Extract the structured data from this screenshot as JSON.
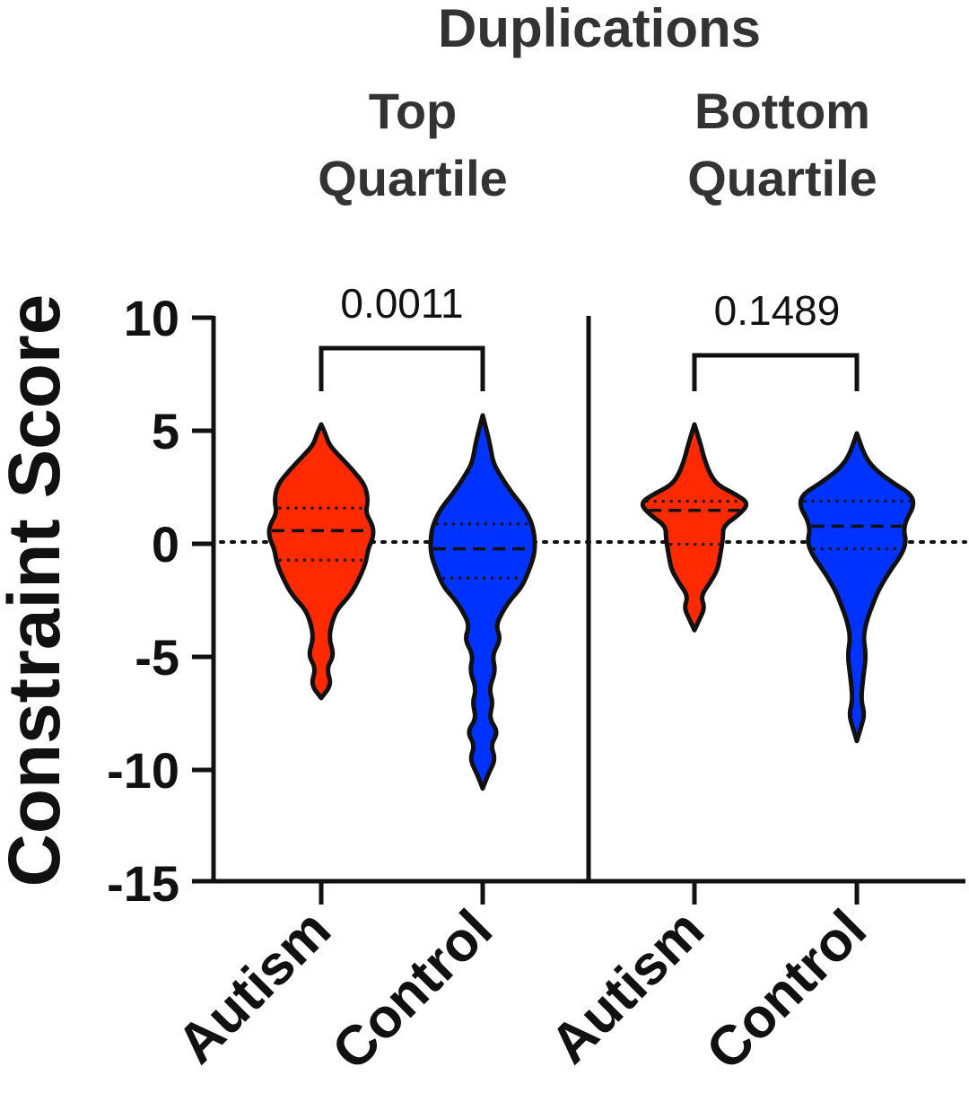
{
  "chart_data": {
    "type": "violin",
    "title": "Duplications",
    "panels": [
      {
        "title_line1": "Top",
        "title_line2": "Quartile",
        "p_value": "0.0011",
        "groups": [
          {
            "name": "Autism",
            "color": "#ff2a00",
            "median": 0.5,
            "q1": -0.8,
            "q3": 1.5,
            "profile": [
              [
                -6.9,
                0.0
              ],
              [
                -6.3,
                0.2
              ],
              [
                -5.6,
                0.1
              ],
              [
                -5.0,
                0.25
              ],
              [
                -4.3,
                0.15
              ],
              [
                -3.6,
                0.2
              ],
              [
                -3.0,
                0.3
              ],
              [
                -2.5,
                0.5
              ],
              [
                -2.0,
                0.65
              ],
              [
                -1.0,
                0.85
              ],
              [
                -0.3,
                0.9
              ],
              [
                0.2,
                1.0
              ],
              [
                0.7,
                1.0
              ],
              [
                1.3,
                0.85
              ],
              [
                1.8,
                0.9
              ],
              [
                2.5,
                0.85
              ],
              [
                3.2,
                0.6
              ],
              [
                3.8,
                0.35
              ],
              [
                4.3,
                0.15
              ],
              [
                4.8,
                0.08
              ],
              [
                5.2,
                0.0
              ]
            ]
          },
          {
            "name": "Control",
            "color": "#0033ff",
            "median": -0.3,
            "q1": -1.6,
            "q3": 0.8,
            "profile": [
              [
                -10.9,
                0.0
              ],
              [
                -10.3,
                0.1
              ],
              [
                -9.6,
                0.25
              ],
              [
                -9.0,
                0.15
              ],
              [
                -8.4,
                0.3
              ],
              [
                -7.8,
                0.12
              ],
              [
                -7.1,
                0.2
              ],
              [
                -6.5,
                0.12
              ],
              [
                -5.7,
                0.25
              ],
              [
                -5.0,
                0.18
              ],
              [
                -4.3,
                0.35
              ],
              [
                -3.7,
                0.25
              ],
              [
                -3.0,
                0.4
              ],
              [
                -2.5,
                0.55
              ],
              [
                -2.0,
                0.75
              ],
              [
                -1.2,
                0.9
              ],
              [
                -0.5,
                1.0
              ],
              [
                0.2,
                1.0
              ],
              [
                0.8,
                0.95
              ],
              [
                1.5,
                0.8
              ],
              [
                2.2,
                0.55
              ],
              [
                2.9,
                0.35
              ],
              [
                3.5,
                0.2
              ],
              [
                4.2,
                0.15
              ],
              [
                4.9,
                0.08
              ],
              [
                5.6,
                0.0
              ]
            ]
          }
        ]
      },
      {
        "title_line1": "Bottom",
        "title_line2": "Quartile",
        "p_value": "0.1489",
        "groups": [
          {
            "name": "Autism",
            "color": "#ff2a00",
            "median": 1.4,
            "q1": -0.1,
            "q3": 1.8,
            "profile": [
              [
                -3.9,
                0.0
              ],
              [
                -3.4,
                0.1
              ],
              [
                -2.9,
                0.2
              ],
              [
                -2.4,
                0.12
              ],
              [
                -1.8,
                0.3
              ],
              [
                -1.2,
                0.45
              ],
              [
                -0.5,
                0.5
              ],
              [
                0.2,
                0.55
              ],
              [
                0.7,
                0.55
              ],
              [
                1.2,
                0.85
              ],
              [
                1.7,
                1.05
              ],
              [
                2.1,
                0.8
              ],
              [
                2.5,
                0.45
              ],
              [
                3.0,
                0.3
              ],
              [
                3.6,
                0.2
              ],
              [
                4.3,
                0.12
              ],
              [
                5.2,
                0.0
              ]
            ]
          },
          {
            "name": "Control",
            "color": "#0033ff",
            "median": 0.7,
            "q1": -0.3,
            "q3": 1.8,
            "profile": [
              [
                -8.8,
                0.0
              ],
              [
                -8.2,
                0.08
              ],
              [
                -7.6,
                0.15
              ],
              [
                -7.0,
                0.08
              ],
              [
                -6.0,
                0.12
              ],
              [
                -5.0,
                0.18
              ],
              [
                -4.2,
                0.12
              ],
              [
                -3.4,
                0.2
              ],
              [
                -2.8,
                0.3
              ],
              [
                -2.2,
                0.4
              ],
              [
                -1.4,
                0.6
              ],
              [
                -0.6,
                0.85
              ],
              [
                0.0,
                0.95
              ],
              [
                0.5,
                0.9
              ],
              [
                1.0,
                0.95
              ],
              [
                1.6,
                1.1
              ],
              [
                2.1,
                1.05
              ],
              [
                2.6,
                0.7
              ],
              [
                3.2,
                0.35
              ],
              [
                3.8,
                0.15
              ],
              [
                4.8,
                0.0
              ]
            ]
          }
        ]
      }
    ],
    "ylabel": "Constraint Score",
    "ylim": [
      -15,
      10
    ],
    "yticks": [
      "10",
      "5",
      "0",
      "-5",
      "-10",
      "-15"
    ],
    "reference_line_y": 0
  }
}
